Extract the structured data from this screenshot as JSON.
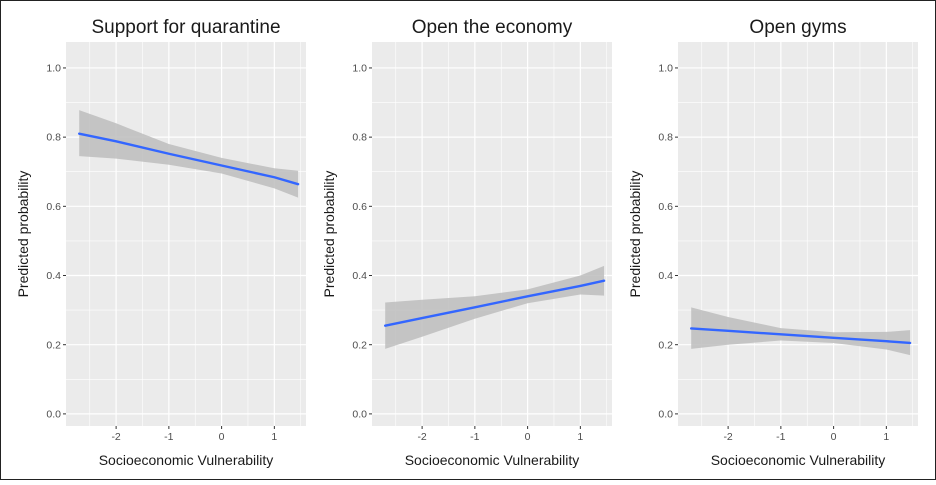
{
  "chart_data": [
    {
      "type": "line",
      "title": "Support for quarantine",
      "xlabel": "Socioeconomic Vulnerability",
      "ylabel": "Predicted probability",
      "xlim": [
        -2.95,
        1.6
      ],
      "ylim": [
        -0.035,
        1.075
      ],
      "x_ticks": [
        -2,
        -1,
        0,
        1
      ],
      "y_ticks": [
        0.0,
        0.2,
        0.4,
        0.6,
        0.8,
        1.0
      ],
      "grid": true,
      "series": [
        {
          "x": [
            -2.7,
            -2.0,
            -1.0,
            0.0,
            1.0,
            1.45
          ],
          "y": [
            0.81,
            0.788,
            0.752,
            0.718,
            0.684,
            0.664
          ],
          "lower": [
            0.745,
            0.738,
            0.72,
            0.695,
            0.652,
            0.625
          ],
          "upper": [
            0.878,
            0.84,
            0.78,
            0.74,
            0.71,
            0.703
          ]
        }
      ]
    },
    {
      "type": "line",
      "title": "Open the economy",
      "xlabel": "Socioeconomic Vulnerability",
      "ylabel": "Predicted probability",
      "xlim": [
        -2.95,
        1.6
      ],
      "ylim": [
        -0.035,
        1.075
      ],
      "x_ticks": [
        -2,
        -1,
        0,
        1
      ],
      "y_ticks": [
        0.0,
        0.2,
        0.4,
        0.6,
        0.8,
        1.0
      ],
      "grid": true,
      "series": [
        {
          "x": [
            -2.7,
            -2.0,
            -1.0,
            0.0,
            1.0,
            1.45
          ],
          "y": [
            0.255,
            0.277,
            0.308,
            0.34,
            0.37,
            0.385
          ],
          "lower": [
            0.188,
            0.223,
            0.275,
            0.32,
            0.345,
            0.342
          ],
          "upper": [
            0.322,
            0.33,
            0.34,
            0.36,
            0.4,
            0.428
          ]
        }
      ]
    },
    {
      "type": "line",
      "title": "Open gyms",
      "xlabel": "Socioeconomic Vulnerability",
      "ylabel": "Predicted probability",
      "xlim": [
        -2.95,
        1.6
      ],
      "ylim": [
        -0.035,
        1.075
      ],
      "x_ticks": [
        -2,
        -1,
        0,
        1
      ],
      "y_ticks": [
        0.0,
        0.2,
        0.4,
        0.6,
        0.8,
        1.0
      ],
      "grid": true,
      "series": [
        {
          "x": [
            -2.7,
            -2.0,
            -1.0,
            0.0,
            1.0,
            1.45
          ],
          "y": [
            0.247,
            0.24,
            0.23,
            0.22,
            0.21,
            0.205
          ],
          "lower": [
            0.188,
            0.2,
            0.212,
            0.205,
            0.186,
            0.17
          ],
          "upper": [
            0.308,
            0.28,
            0.248,
            0.236,
            0.237,
            0.242
          ]
        }
      ]
    }
  ],
  "colors": {
    "line": "#3366FF",
    "ribbon": "#BDBDBD",
    "panel_bg": "#EBEBEB",
    "grid": "#FFFFFF",
    "text": "#1A1A1A",
    "tick_text": "#4D4D4D"
  }
}
